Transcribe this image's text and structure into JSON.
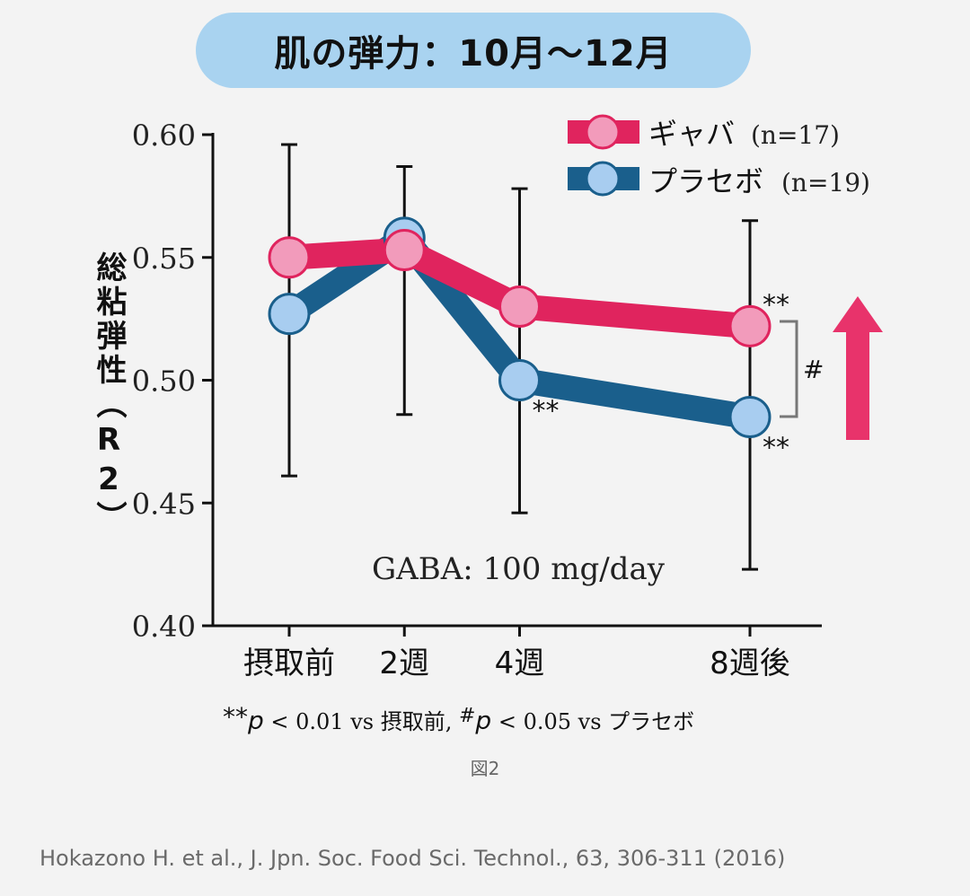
{
  "title": "肌の弾力：10月～12月",
  "figure_label": "図2",
  "citation": "Hokazono H. et al., J. Jpn. Soc. Food Sci. Technol., 63, 306-311 (2016)",
  "footnote": {
    "part1_mark": "**",
    "part1_p": "p",
    "part1_text": " < 0.01 vs 摂取前, ",
    "part2_mark": "#",
    "part2_p": "p",
    "part2_text": " < 0.05 vs プラセボ"
  },
  "colors": {
    "gaba_line": "#e0245e",
    "gaba_marker": "#f29bbb",
    "placebo_line": "#1a5f8c",
    "placebo_marker": "#a8cdf0",
    "arrow": "#e8336b"
  },
  "chart_data": {
    "type": "line",
    "title": "肌の弾力：10月～12月",
    "xlabel": "",
    "ylabel": "総粘弾性（R2）",
    "categories": [
      "摂取前",
      "2週",
      "4週",
      "8週後"
    ],
    "x_positions_weeks": [
      0,
      2,
      4,
      8
    ],
    "ylim": [
      0.4,
      0.6
    ],
    "yticks": [
      "0.60",
      "0.55",
      "0.50",
      "0.45",
      "0.40"
    ],
    "ytick_values": [
      0.6,
      0.55,
      0.5,
      0.45,
      0.4
    ],
    "annotation": "GABA: 100 mg/day",
    "legend_position": "top-right",
    "series": [
      {
        "name": "ギャバ",
        "n_label": "(n=17)",
        "values": [
          0.55,
          0.553,
          0.53,
          0.522
        ],
        "significance": [
          "",
          "",
          "",
          "**"
        ]
      },
      {
        "name": "プラセボ",
        "n_label": "(n=19)",
        "values": [
          0.527,
          0.558,
          0.5,
          0.485
        ],
        "significance": [
          "",
          "",
          "**",
          "**"
        ]
      }
    ],
    "error_bars": [
      {
        "x_index": 0,
        "upper": 0.596,
        "lower": 0.461
      },
      {
        "x_index": 1,
        "upper": 0.587,
        "lower": 0.486
      },
      {
        "x_index": 2,
        "upper": 0.578,
        "lower": 0.446
      },
      {
        "x_index": 3,
        "upper": 0.565,
        "lower": 0.423
      }
    ],
    "group_comparison": {
      "at_index": 3,
      "mark": "#"
    }
  }
}
